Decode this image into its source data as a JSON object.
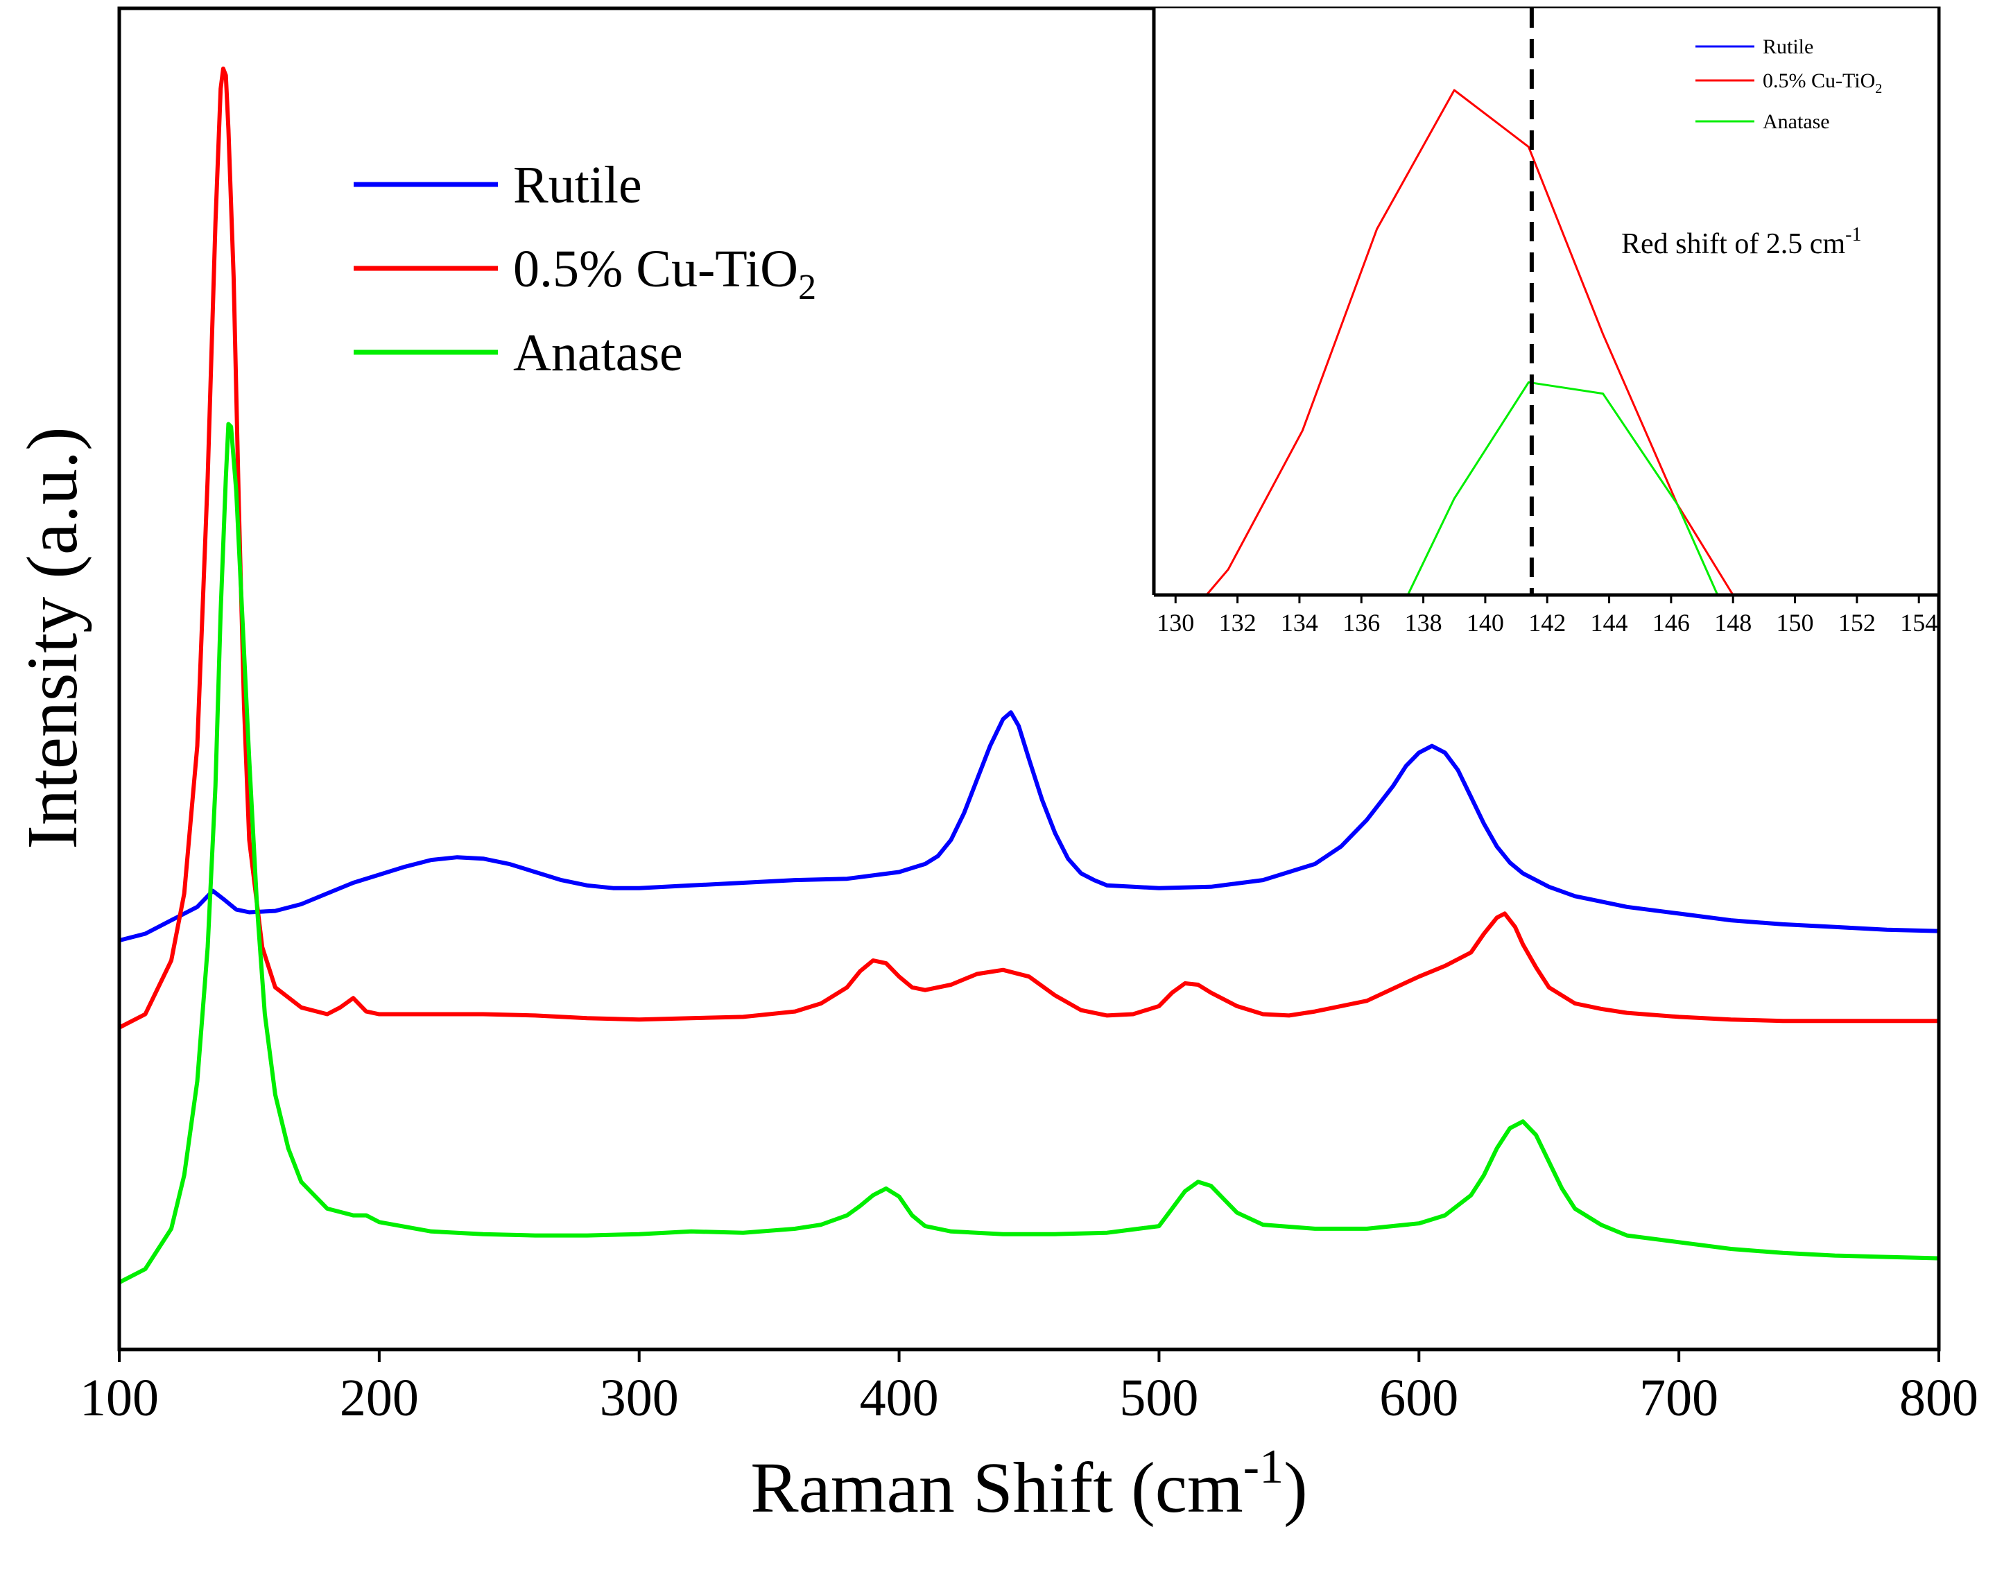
{
  "chart_data": [
    {
      "type": "line",
      "title": "",
      "xlabel": "Raman Shift (cm",
      "xlabel_sup": "-1",
      "xlabel_close": ")",
      "ylabel": "Intensity (a.u.)",
      "xlim": [
        100,
        800
      ],
      "ylim": [
        0,
        1
      ],
      "xticks": [
        100,
        200,
        300,
        400,
        500,
        600,
        700,
        800
      ],
      "xtick_labels": [
        "100",
        "200",
        "300",
        "400",
        "500",
        "600",
        "700",
        "800"
      ],
      "legend_position": "upper-left",
      "series": [
        {
          "name": "Rutile",
          "name_main": "Rutile",
          "name_sub": "",
          "color": "#0000ff",
          "x": [
            100,
            110,
            120,
            130,
            136,
            140,
            145,
            150,
            160,
            170,
            180,
            190,
            200,
            210,
            220,
            230,
            240,
            250,
            260,
            270,
            280,
            290,
            300,
            320,
            340,
            360,
            380,
            400,
            410,
            415,
            420,
            425,
            430,
            435,
            440,
            443,
            446,
            450,
            455,
            460,
            465,
            470,
            475,
            480,
            490,
            500,
            520,
            540,
            560,
            570,
            580,
            590,
            595,
            600,
            605,
            610,
            615,
            620,
            625,
            630,
            635,
            640,
            650,
            660,
            680,
            700,
            720,
            740,
            760,
            780,
            800
          ],
          "y": [
            0.305,
            0.31,
            0.32,
            0.33,
            0.342,
            0.336,
            0.328,
            0.326,
            0.327,
            0.332,
            0.34,
            0.348,
            0.354,
            0.36,
            0.365,
            0.367,
            0.366,
            0.362,
            0.356,
            0.35,
            0.346,
            0.344,
            0.344,
            0.346,
            0.348,
            0.35,
            0.351,
            0.356,
            0.362,
            0.368,
            0.38,
            0.4,
            0.425,
            0.45,
            0.47,
            0.475,
            0.465,
            0.44,
            0.41,
            0.385,
            0.366,
            0.355,
            0.35,
            0.346,
            0.345,
            0.344,
            0.345,
            0.35,
            0.362,
            0.375,
            0.395,
            0.42,
            0.435,
            0.445,
            0.45,
            0.445,
            0.432,
            0.412,
            0.392,
            0.375,
            0.363,
            0.355,
            0.345,
            0.338,
            0.33,
            0.325,
            0.32,
            0.317,
            0.315,
            0.313,
            0.312
          ]
        },
        {
          "name": "0.5% Cu-TiO2",
          "name_main": "0.5% Cu-TiO",
          "name_sub": "2",
          "color": "#ff0000",
          "x": [
            100,
            110,
            120,
            125,
            130,
            134,
            137,
            139,
            140,
            141,
            142,
            144,
            146,
            148,
            150,
            155,
            160,
            170,
            180,
            185,
            190,
            195,
            200,
            220,
            240,
            260,
            280,
            300,
            320,
            340,
            360,
            370,
            380,
            385,
            390,
            395,
            400,
            405,
            410,
            420,
            430,
            440,
            450,
            460,
            470,
            480,
            490,
            500,
            505,
            510,
            515,
            520,
            530,
            540,
            550,
            560,
            580,
            600,
            610,
            620,
            625,
            630,
            633,
            637,
            640,
            645,
            650,
            660,
            670,
            680,
            700,
            720,
            740,
            760,
            780,
            800
          ],
          "y": [
            0.24,
            0.25,
            0.29,
            0.34,
            0.45,
            0.65,
            0.84,
            0.94,
            0.955,
            0.95,
            0.91,
            0.8,
            0.63,
            0.48,
            0.38,
            0.3,
            0.27,
            0.255,
            0.25,
            0.255,
            0.262,
            0.252,
            0.25,
            0.25,
            0.25,
            0.249,
            0.247,
            0.246,
            0.247,
            0.248,
            0.252,
            0.258,
            0.27,
            0.282,
            0.29,
            0.288,
            0.278,
            0.27,
            0.268,
            0.272,
            0.28,
            0.283,
            0.278,
            0.264,
            0.253,
            0.249,
            0.25,
            0.256,
            0.266,
            0.273,
            0.272,
            0.266,
            0.256,
            0.25,
            0.249,
            0.252,
            0.26,
            0.278,
            0.286,
            0.296,
            0.31,
            0.322,
            0.325,
            0.315,
            0.302,
            0.285,
            0.27,
            0.258,
            0.254,
            0.251,
            0.248,
            0.246,
            0.245,
            0.245,
            0.245,
            0.245
          ]
        },
        {
          "name": "Anatase",
          "name_main": "Anatase",
          "name_sub": "",
          "color": "#00ee00",
          "x": [
            100,
            110,
            120,
            125,
            130,
            134,
            137,
            139,
            141,
            142,
            143,
            145,
            147,
            150,
            153,
            156,
            160,
            165,
            170,
            180,
            190,
            195,
            200,
            220,
            240,
            260,
            280,
            300,
            320,
            340,
            360,
            370,
            380,
            385,
            390,
            395,
            400,
            405,
            410,
            420,
            440,
            460,
            480,
            500,
            505,
            510,
            515,
            520,
            525,
            530,
            540,
            560,
            580,
            600,
            610,
            620,
            625,
            630,
            635,
            640,
            645,
            650,
            655,
            660,
            670,
            680,
            700,
            720,
            740,
            760,
            780,
            800
          ],
          "y": [
            0.05,
            0.06,
            0.09,
            0.13,
            0.2,
            0.3,
            0.42,
            0.55,
            0.65,
            0.69,
            0.688,
            0.64,
            0.56,
            0.44,
            0.33,
            0.25,
            0.19,
            0.15,
            0.125,
            0.105,
            0.1,
            0.1,
            0.095,
            0.088,
            0.086,
            0.085,
            0.085,
            0.086,
            0.088,
            0.087,
            0.09,
            0.093,
            0.1,
            0.107,
            0.115,
            0.12,
            0.114,
            0.1,
            0.092,
            0.088,
            0.086,
            0.086,
            0.087,
            0.092,
            0.105,
            0.118,
            0.125,
            0.122,
            0.112,
            0.102,
            0.093,
            0.09,
            0.09,
            0.094,
            0.1,
            0.115,
            0.13,
            0.15,
            0.165,
            0.17,
            0.16,
            0.14,
            0.12,
            0.105,
            0.093,
            0.085,
            0.08,
            0.075,
            0.072,
            0.07,
            0.069,
            0.068
          ]
        }
      ]
    },
    {
      "type": "line",
      "title": "",
      "xlim": [
        129.3,
        154.6
      ],
      "ylim": [
        0,
        1
      ],
      "xticks": [
        130,
        132,
        134,
        136,
        138,
        140,
        142,
        144,
        146,
        148,
        150,
        152,
        154
      ],
      "xtick_labels": [
        "130",
        "132",
        "134",
        "136",
        "138",
        "140",
        "142",
        "144",
        "146",
        "148",
        "150",
        "152",
        "154"
      ],
      "dashed_line_x": 141.5,
      "annotation_text": "Red shift of 2.5 cm",
      "annotation_sup": "-1",
      "legend_position": "top-right",
      "series": [
        {
          "name": "Rutile",
          "name_main": "Rutile",
          "name_sub": "",
          "color": "#0000ff",
          "x": [],
          "y": []
        },
        {
          "name": "0.5% Cu-TiO2",
          "name_main": "0.5% Cu-TiO",
          "name_sub": "2",
          "color": "#ff0000",
          "x": [
            131,
            131.7,
            134.1,
            136.5,
            139,
            141.4,
            143.8,
            146.2,
            148
          ],
          "y": [
            0,
            0.045,
            0.29,
            0.645,
            0.89,
            0.79,
            0.46,
            0.16,
            0
          ]
        },
        {
          "name": "Anatase",
          "name_main": "Anatase",
          "name_sub": "",
          "color": "#00ee00",
          "x": [
            137.5,
            139,
            141.4,
            143.8,
            146.2,
            147.5
          ],
          "y": [
            0,
            0.17,
            0.375,
            0.355,
            0.16,
            0
          ]
        }
      ]
    }
  ]
}
